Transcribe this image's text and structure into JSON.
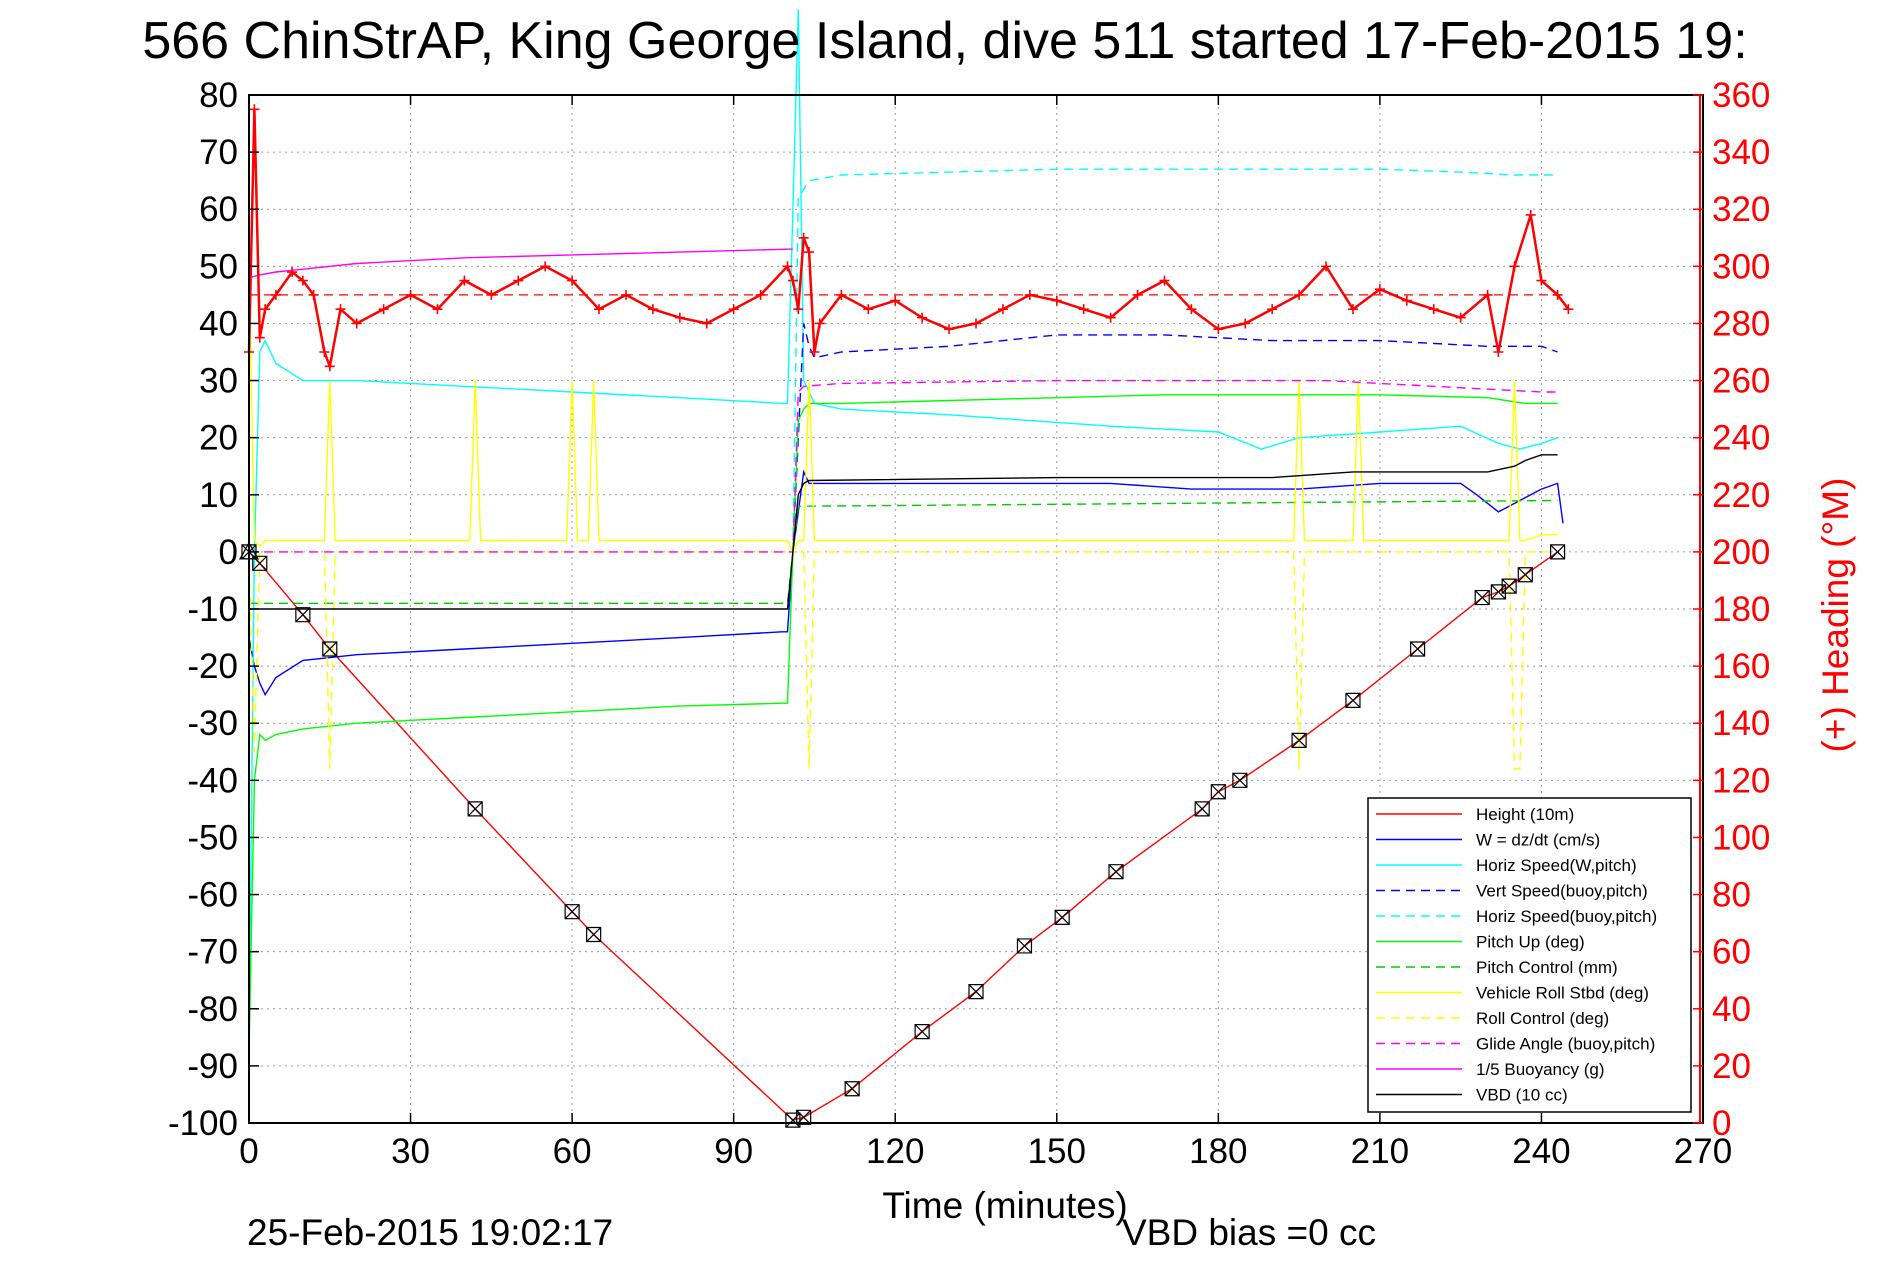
{
  "chart_data": {
    "type": "line",
    "title": "566 ChinStrAP, King George Island, dive 511 started 17-Feb-2015 19:",
    "xlabel": "Time (minutes)",
    "ylabel_right": "(+) Heading (°M)",
    "footer_left": "25-Feb-2015 19:02:17",
    "footer_right": "VBD bias =0 cc",
    "xlim": [
      0,
      270
    ],
    "ylim": [
      -100,
      80
    ],
    "ylim_right": [
      0,
      360
    ],
    "x_ticks": [
      0,
      30,
      60,
      90,
      120,
      150,
      180,
      210,
      240,
      270
    ],
    "y_ticks": [
      80,
      70,
      60,
      50,
      40,
      30,
      20,
      10,
      0,
      -10,
      -20,
      -30,
      -40,
      -50,
      -60,
      -70,
      -80,
      -90,
      -100
    ],
    "y_right_ticks": [
      360,
      340,
      320,
      300,
      280,
      260,
      240,
      220,
      200,
      180,
      160,
      140,
      120,
      100,
      80,
      60,
      40,
      20,
      0
    ],
    "grid": true,
    "legend_position": "bottom-right",
    "colors": {
      "right_axis": "#ff0000"
    },
    "series": [
      {
        "name": "Height (10m)",
        "color": "#ff0000",
        "style": "solid",
        "marker": "boxed-x",
        "marker_color": "#000000",
        "x": [
          0,
          2,
          10,
          15,
          42,
          60,
          64,
          101,
          103,
          112,
          125,
          135,
          144,
          151,
          161,
          177,
          180,
          184,
          195,
          205,
          217,
          229,
          232,
          234,
          237,
          243
        ],
        "y": [
          0,
          -2,
          -11,
          -17,
          -45,
          -63,
          -67,
          -99.5,
          -99,
          -94,
          -84,
          -77,
          -69,
          -64,
          -56,
          -45,
          -42,
          -40,
          -33,
          -26,
          -17,
          -8,
          -7,
          -6,
          -4,
          0
        ]
      },
      {
        "name": "W = dz/dt (cm/s)",
        "color": "#0000ff",
        "style": "solid",
        "x": [
          0,
          1,
          2,
          3,
          5,
          10,
          20,
          40,
          60,
          80,
          99,
          100,
          101,
          103,
          104,
          106,
          120,
          140,
          160,
          175,
          185,
          195,
          210,
          225,
          228,
          232,
          236,
          240,
          243,
          244
        ],
        "y": [
          -15,
          -20,
          -23,
          -25,
          -22,
          -19,
          -18,
          -17,
          -16,
          -15,
          -14,
          -14,
          0,
          14,
          12,
          12,
          12,
          12,
          12,
          11,
          11,
          11,
          12,
          12,
          10,
          7,
          9,
          11,
          12,
          5
        ]
      },
      {
        "name": "Horiz Speed(W,pitch)",
        "color": "#00ffff",
        "style": "solid",
        "x": [
          0,
          1,
          2,
          3,
          5,
          10,
          20,
          40,
          60,
          80,
          99,
          100,
          101,
          102,
          103,
          104,
          105,
          110,
          130,
          160,
          180,
          188,
          195,
          210,
          225,
          232,
          236,
          240,
          243
        ],
        "y": [
          -85,
          0,
          35,
          37,
          33,
          30,
          30,
          29,
          28,
          27,
          26,
          26,
          60,
          95,
          30,
          28,
          26,
          25,
          24,
          22,
          21,
          18,
          20,
          21,
          22,
          19,
          18,
          19,
          20
        ]
      },
      {
        "name": "Vert Speed(buoy,pitch)",
        "color": "#0000ff",
        "style": "dashed",
        "x": [
          101,
          103,
          104,
          105,
          110,
          130,
          150,
          170,
          190,
          210,
          230,
          240,
          243
        ],
        "y": [
          0,
          40,
          36,
          34,
          35,
          36,
          38,
          38,
          37,
          37,
          36,
          36,
          35
        ]
      },
      {
        "name": "Horiz Speed(buoy,pitch)",
        "color": "#00ffff",
        "style": "dashed",
        "x": [
          101,
          102,
          104,
          110,
          130,
          150,
          170,
          190,
          210,
          225,
          235,
          240,
          243
        ],
        "y": [
          0,
          62,
          65,
          66,
          66.5,
          67,
          67,
          67,
          67,
          66.5,
          66,
          66,
          66
        ]
      },
      {
        "name": "Pitch Up (deg)",
        "color": "#00ff00",
        "style": "solid",
        "x": [
          0,
          1,
          2,
          3,
          5,
          10,
          20,
          40,
          60,
          80,
          99,
          100,
          101,
          102,
          103,
          104,
          110,
          130,
          150,
          170,
          190,
          210,
          230,
          237,
          240,
          243
        ],
        "y": [
          -88,
          -40,
          -32,
          -33,
          -32,
          -31,
          -30,
          -29,
          -28,
          -27,
          -26.5,
          -26.5,
          0,
          23,
          25,
          26,
          26,
          26.5,
          27,
          27.5,
          27.5,
          27.5,
          27,
          26,
          26,
          26
        ]
      },
      {
        "name": "Pitch Control (mm)",
        "color": "#00cc00",
        "style": "dashed",
        "x": [
          0,
          1,
          100,
          101,
          102,
          103,
          243
        ],
        "y": [
          -9,
          -9,
          -9,
          0,
          8,
          8,
          9
        ]
      },
      {
        "name": "Vehicle Roll Stbd (deg)",
        "color": "#ffff00",
        "style": "solid",
        "x": [
          0,
          1,
          2,
          3,
          14,
          15,
          16,
          41,
          42,
          43,
          59,
          60,
          61,
          63,
          64,
          65,
          100,
          101,
          102,
          103,
          104,
          105,
          106,
          110,
          120,
          150,
          180,
          194,
          195,
          196,
          205,
          206,
          207,
          234,
          235,
          236,
          237,
          240,
          243
        ],
        "y": [
          50,
          2,
          1,
          2,
          2,
          30,
          2,
          2,
          30,
          2,
          2,
          30,
          2,
          2,
          30,
          2,
          2,
          0,
          2,
          2,
          30,
          2,
          2,
          2,
          2,
          2,
          2,
          2,
          30,
          2,
          2,
          30,
          2,
          2,
          30,
          2,
          2,
          3,
          3
        ]
      },
      {
        "name": "Roll Control (deg)",
        "color": "#ffff00",
        "style": "dashed",
        "x": [
          0,
          1,
          2,
          3,
          14,
          15,
          16,
          100,
          101,
          103,
          104,
          105,
          106,
          194,
          195,
          196,
          234,
          235,
          236,
          237,
          240,
          243
        ],
        "y": [
          0,
          -35,
          0,
          0,
          0,
          -38,
          0,
          0,
          0,
          0,
          -38,
          0,
          0,
          0,
          -38,
          0,
          0,
          -38,
          -38,
          0,
          0,
          0
        ]
      },
      {
        "name": "Glide Angle (buoy,pitch)",
        "color": "#ff00ff",
        "style": "dashed",
        "x": [
          0,
          100,
          101,
          102,
          103,
          110,
          150,
          200,
          240,
          243
        ],
        "y": [
          0,
          0,
          0,
          28,
          29,
          29.5,
          30,
          30,
          28,
          28
        ]
      },
      {
        "name": "1/5 Buoyancy (g)",
        "color": "#ff00ff",
        "style": "solid",
        "x": [
          0,
          2,
          5,
          10,
          20,
          40,
          60,
          80,
          100,
          101
        ],
        "y": [
          48,
          48.5,
          49,
          49.5,
          50.5,
          51.5,
          52,
          52.5,
          53,
          53
        ]
      },
      {
        "name": "VBD (10 cc)",
        "color": "#000000",
        "style": "solid",
        "x": [
          0,
          1,
          100,
          101,
          102,
          103,
          104,
          150,
          175,
          190,
          205,
          230,
          235,
          237,
          240,
          243
        ],
        "y": [
          -10,
          -10,
          -10,
          0,
          10,
          12,
          12.5,
          13,
          13,
          13,
          14,
          14,
          15,
          16,
          17,
          17
        ]
      }
    ],
    "heading_series": {
      "name": "(+) Heading (°M)",
      "axis": "right",
      "color": "#ff0000",
      "marker": "+",
      "target": 290,
      "x": [
        0,
        1,
        2,
        3,
        5,
        8,
        10,
        12,
        14,
        15,
        17,
        20,
        25,
        30,
        35,
        40,
        45,
        50,
        55,
        60,
        65,
        70,
        75,
        80,
        85,
        90,
        95,
        100,
        101,
        102,
        103,
        104,
        105,
        106,
        110,
        115,
        120,
        125,
        130,
        135,
        140,
        145,
        150,
        155,
        160,
        165,
        170,
        175,
        180,
        185,
        190,
        195,
        200,
        205,
        210,
        215,
        220,
        225,
        230,
        232,
        235,
        238,
        240,
        243,
        245
      ],
      "y": [
        270,
        355,
        275,
        285,
        290,
        298,
        295,
        290,
        270,
        265,
        285,
        280,
        285,
        290,
        285,
        295,
        290,
        295,
        300,
        295,
        285,
        290,
        285,
        282,
        280,
        285,
        290,
        300,
        295,
        285,
        310,
        305,
        270,
        280,
        290,
        285,
        288,
        282,
        278,
        280,
        285,
        290,
        288,
        285,
        282,
        290,
        295,
        285,
        278,
        280,
        285,
        290,
        300,
        285,
        292,
        288,
        285,
        282,
        290,
        270,
        300,
        318,
        295,
        290,
        285
      ]
    }
  }
}
